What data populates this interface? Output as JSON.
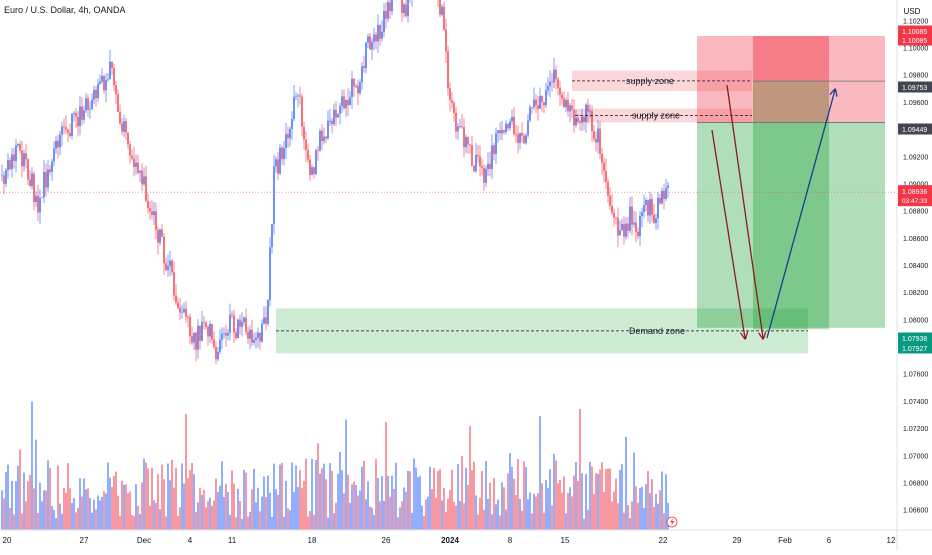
{
  "chart_data": {
    "type": "candlestick",
    "title": "Euro / U.S. Dollar, 4h, OANDA",
    "currency": "USD",
    "ylim": [
      1.0645,
      1.1035
    ],
    "y_ticks": [
      1.066,
      1.068,
      1.07,
      1.072,
      1.074,
      1.076,
      1.078,
      1.08,
      1.082,
      1.084,
      1.086,
      1.088,
      1.09,
      1.092,
      1.094,
      1.096,
      1.098,
      1.1,
      1.102
    ],
    "y_tick_labels": [
      "1.06600",
      "1.06800",
      "1.07000",
      "1.07200",
      "1.07400",
      "1.07600",
      "1.07800",
      "1.08000",
      "1.08200",
      "1.08400",
      "1.08600",
      "1.08800",
      "1.09000",
      "1.09200",
      "1.09400",
      "1.09600",
      "1.09800",
      "1.10000",
      "1.10200"
    ],
    "x_ticks": [
      {
        "label": "20",
        "bold": false
      },
      {
        "label": "27",
        "bold": false
      },
      {
        "label": "Dec",
        "bold": false
      },
      {
        "label": "4",
        "bold": false
      },
      {
        "label": "11",
        "bold": false
      },
      {
        "label": "18",
        "bold": false
      },
      {
        "label": "26",
        "bold": false
      },
      {
        "label": "2024",
        "bold": true
      },
      {
        "label": "8",
        "bold": false
      },
      {
        "label": "15",
        "bold": false
      },
      {
        "label": "22",
        "bold": false
      },
      {
        "label": "29",
        "bold": false
      },
      {
        "label": "Feb",
        "bold": false
      },
      {
        "label": "6",
        "bold": false
      },
      {
        "label": "12",
        "bold": false
      }
    ],
    "current_price": {
      "value": 1.08936,
      "label": "1.08936",
      "countdown": "03:47:33",
      "color": "#f23645"
    },
    "price_labels": [
      {
        "value": 1.10085,
        "label": "1.10085",
        "color": "#f23645"
      },
      {
        "value": 1.10085,
        "label": "1.10085",
        "color": "#f23645"
      },
      {
        "value": 1.09753,
        "label": "1.09753",
        "color": "#434651"
      },
      {
        "value": 1.09449,
        "label": "1.09449",
        "color": "#434651"
      },
      {
        "value": 1.07938,
        "label": "1.07938",
        "color": "#089981"
      },
      {
        "value": 1.07927,
        "label": "1.07927",
        "color": "#089981"
      }
    ],
    "zones": [
      {
        "label": "supply zone",
        "top": 1.0983,
        "bottom": 1.0968
      },
      {
        "label": "supply zone",
        "top": 1.0955,
        "bottom": 1.0945
      },
      {
        "label": "Demand zone",
        "top": 1.0808,
        "bottom": 1.0775
      }
    ],
    "position_long": {
      "entry": 1.09449,
      "stop": 1.10085,
      "target": 1.07938
    },
    "position_second": {
      "entry": 1.09753,
      "stop": 1.10085,
      "target": 1.07927
    },
    "waypoints": [
      [
        0,
        1.0905
      ],
      [
        6,
        1.0925
      ],
      [
        12,
        1.0915
      ],
      [
        18,
        1.0885
      ],
      [
        24,
        1.0915
      ],
      [
        30,
        1.0935
      ],
      [
        36,
        1.0945
      ],
      [
        42,
        1.0955
      ],
      [
        48,
        1.0968
      ],
      [
        54,
        1.0985
      ],
      [
        60,
        1.0945
      ],
      [
        66,
        1.0915
      ],
      [
        72,
        1.0895
      ],
      [
        78,
        1.0865
      ],
      [
        84,
        1.0835
      ],
      [
        90,
        1.0805
      ],
      [
        96,
        1.0785
      ],
      [
        102,
        1.0795
      ],
      [
        108,
        1.0775
      ],
      [
        114,
        1.0795
      ],
      [
        120,
        1.0795
      ],
      [
        126,
        1.0785
      ],
      [
        132,
        1.0795
      ],
      [
        136,
        1.0905
      ],
      [
        142,
        1.0935
      ],
      [
        148,
        1.0965
      ],
      [
        154,
        1.0905
      ],
      [
        160,
        1.0935
      ],
      [
        166,
        1.0955
      ],
      [
        172,
        1.0965
      ],
      [
        178,
        1.0975
      ],
      [
        184,
        1.1005
      ],
      [
        190,
        1.1015
      ],
      [
        196,
        1.1045
      ],
      [
        202,
        1.1025
      ],
      [
        208,
        1.1065
      ],
      [
        214,
        1.1055
      ],
      [
        220,
        1.1025
      ],
      [
        224,
        1.0955
      ],
      [
        230,
        1.0935
      ],
      [
        236,
        1.0915
      ],
      [
        242,
        1.0905
      ],
      [
        248,
        1.0935
      ],
      [
        254,
        1.0945
      ],
      [
        260,
        1.0935
      ],
      [
        266,
        1.0955
      ],
      [
        272,
        1.0965
      ],
      [
        276,
        1.0975
      ],
      [
        280,
        1.0965
      ],
      [
        286,
        1.0945
      ],
      [
        292,
        1.0955
      ],
      [
        298,
        1.0935
      ],
      [
        302,
        1.0905
      ],
      [
        306,
        1.0875
      ],
      [
        310,
        1.0865
      ],
      [
        314,
        1.0875
      ],
      [
        318,
        1.0865
      ],
      [
        322,
        1.0885
      ],
      [
        326,
        1.0875
      ],
      [
        330,
        1.0895
      ],
      [
        333,
        1.0894
      ]
    ],
    "volume": {
      "seed": 7,
      "min": 0.15,
      "max": 1.0
    }
  }
}
